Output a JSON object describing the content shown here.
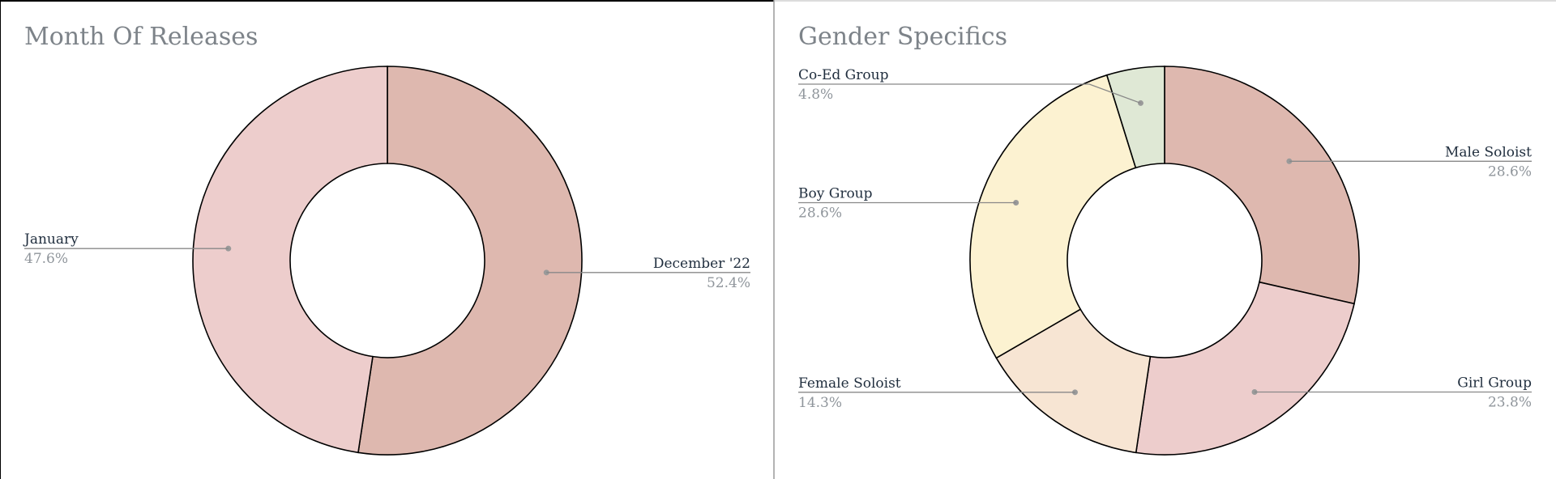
{
  "chart_data": [
    {
      "type": "pie",
      "donut": true,
      "title": "Month Of Releases",
      "categories": [
        "December '22",
        "January"
      ],
      "values": [
        52.4,
        47.6
      ],
      "labels": [
        "52.4%",
        "47.6%"
      ],
      "colors": [
        "#deb8af",
        "#edcdcc"
      ]
    },
    {
      "type": "pie",
      "donut": true,
      "title": "Gender Specifics",
      "categories": [
        "Male Soloist",
        "Girl Group",
        "Female Soloist",
        "Boy Group",
        "Co-Ed Group"
      ],
      "values": [
        28.6,
        23.8,
        14.3,
        28.6,
        4.8
      ],
      "labels": [
        "28.6%",
        "23.8%",
        "14.3%",
        "28.6%",
        "4.8%"
      ],
      "colors": [
        "#deb8af",
        "#edcdcc",
        "#f7e5d3",
        "#fcf2d1",
        "#dfe8d5"
      ]
    }
  ]
}
